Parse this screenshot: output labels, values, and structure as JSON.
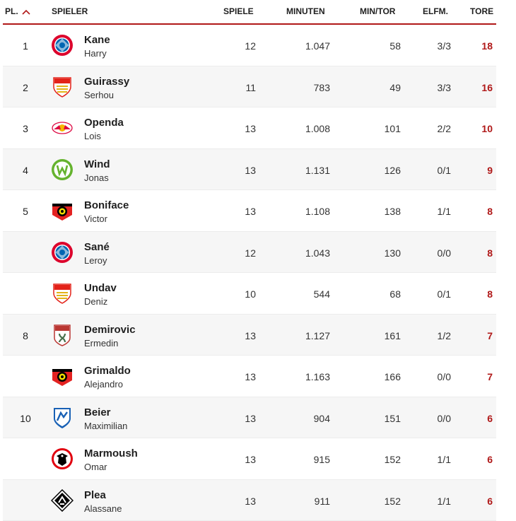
{
  "header": {
    "rank": "PL.",
    "player": "SPIELER",
    "games": "SPIELE",
    "minutes": "MINUTEN",
    "min_per_goal": "MIN/TOR",
    "penalties": "ELFM.",
    "goals": "TORE"
  },
  "accent_color": "#b01818",
  "rows": [
    {
      "rank": "1",
      "last": "Kane",
      "first": "Harry",
      "club_icon": "bayern-munich-logo-icon",
      "games": "12",
      "minutes": "1.047",
      "min_per_goal": "58",
      "penalties": "3/3",
      "goals": "18"
    },
    {
      "rank": "2",
      "last": "Guirassy",
      "first": "Serhou",
      "club_icon": "vfb-stuttgart-logo-icon",
      "games": "11",
      "minutes": "783",
      "min_per_goal": "49",
      "penalties": "3/3",
      "goals": "16"
    },
    {
      "rank": "3",
      "last": "Openda",
      "first": "Lois",
      "club_icon": "rb-leipzig-logo-icon",
      "games": "13",
      "minutes": "1.008",
      "min_per_goal": "101",
      "penalties": "2/2",
      "goals": "10"
    },
    {
      "rank": "4",
      "last": "Wind",
      "first": "Jonas",
      "club_icon": "vfl-wolfsburg-logo-icon",
      "games": "13",
      "minutes": "1.131",
      "min_per_goal": "126",
      "penalties": "0/1",
      "goals": "9"
    },
    {
      "rank": "5",
      "last": "Boniface",
      "first": "Victor",
      "club_icon": "bayer-leverkusen-logo-icon",
      "games": "13",
      "minutes": "1.108",
      "min_per_goal": "138",
      "penalties": "1/1",
      "goals": "8"
    },
    {
      "rank": "",
      "last": "Sané",
      "first": "Leroy",
      "club_icon": "bayern-munich-logo-icon",
      "games": "12",
      "minutes": "1.043",
      "min_per_goal": "130",
      "penalties": "0/0",
      "goals": "8"
    },
    {
      "rank": "",
      "last": "Undav",
      "first": "Deniz",
      "club_icon": "vfb-stuttgart-logo-icon",
      "games": "10",
      "minutes": "544",
      "min_per_goal": "68",
      "penalties": "0/1",
      "goals": "8"
    },
    {
      "rank": "8",
      "last": "Demirovic",
      "first": "Ermedin",
      "club_icon": "fc-augsburg-logo-icon",
      "games": "13",
      "minutes": "1.127",
      "min_per_goal": "161",
      "penalties": "1/2",
      "goals": "7"
    },
    {
      "rank": "",
      "last": "Grimaldo",
      "first": "Alejandro",
      "club_icon": "bayer-leverkusen-logo-icon",
      "games": "13",
      "minutes": "1.163",
      "min_per_goal": "166",
      "penalties": "0/0",
      "goals": "7"
    },
    {
      "rank": "10",
      "last": "Beier",
      "first": "Maximilian",
      "club_icon": "tsg-hoffenheim-logo-icon",
      "games": "13",
      "minutes": "904",
      "min_per_goal": "151",
      "penalties": "0/0",
      "goals": "6"
    },
    {
      "rank": "",
      "last": "Marmoush",
      "first": "Omar",
      "club_icon": "eintracht-frankfurt-logo-icon",
      "games": "13",
      "minutes": "915",
      "min_per_goal": "152",
      "penalties": "1/1",
      "goals": "6"
    },
    {
      "rank": "",
      "last": "Plea",
      "first": "Alassane",
      "club_icon": "borussia-mgladbach-logo-icon",
      "games": "13",
      "minutes": "911",
      "min_per_goal": "152",
      "penalties": "1/1",
      "goals": "6"
    }
  ]
}
